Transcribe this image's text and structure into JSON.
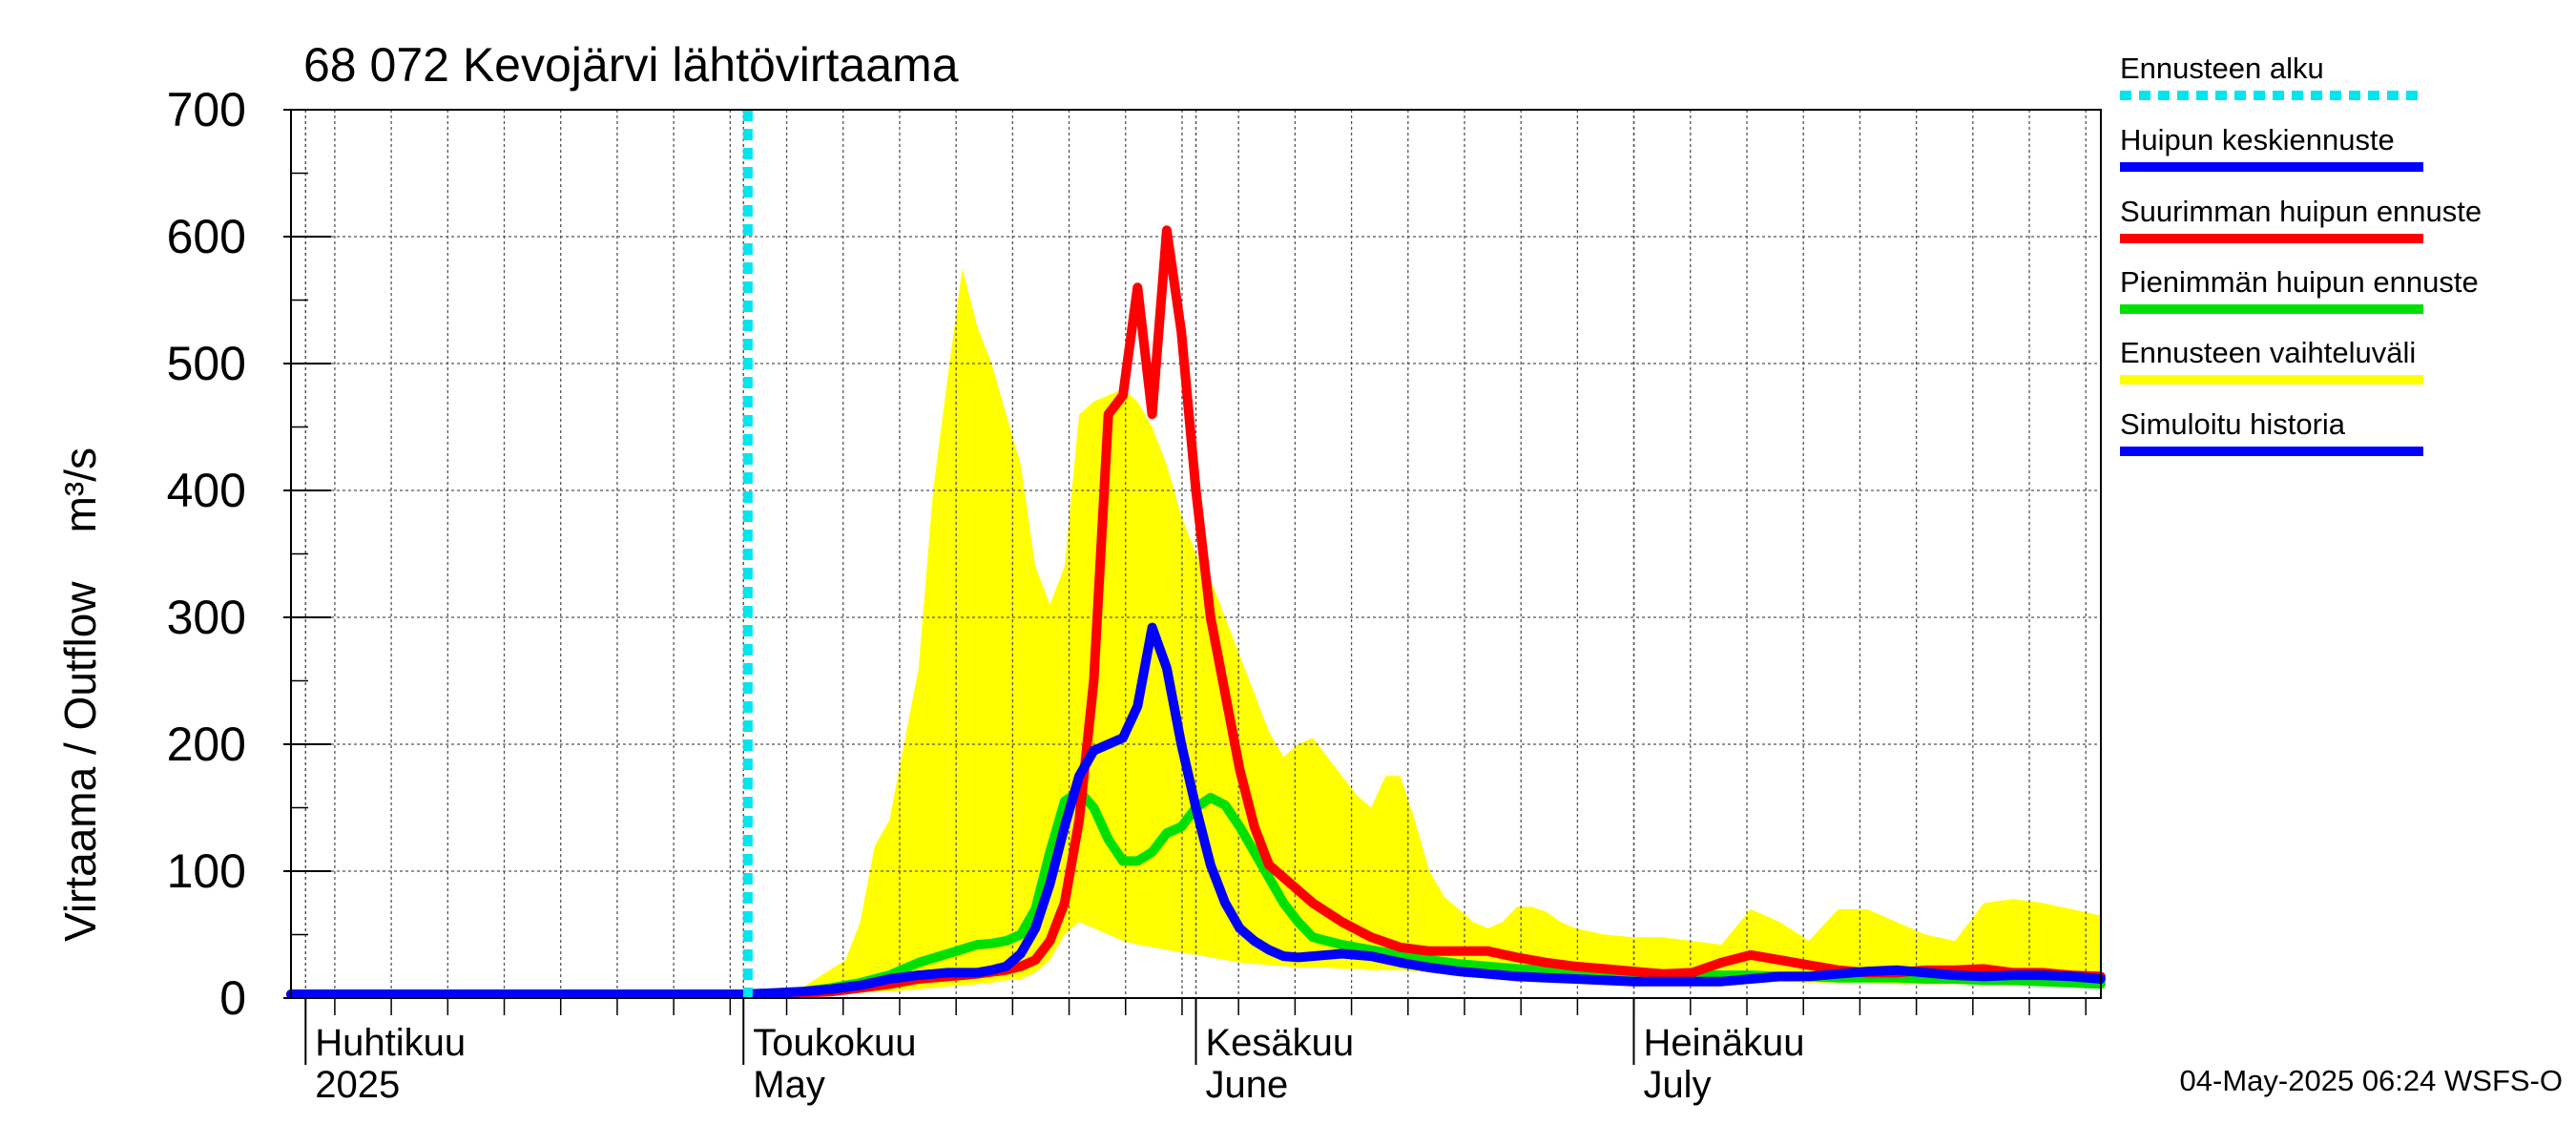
{
  "chart_data": {
    "type": "line",
    "title": "68 072 Kevojärvi lähtövirtaama",
    "ylabel": "Virtaama / Outflow    m³/s",
    "ylim": [
      0,
      700
    ],
    "yticks": [
      0,
      100,
      200,
      300,
      400,
      500,
      600,
      700
    ],
    "ytick_labels": [
      "0",
      "100",
      "200",
      "300",
      "400",
      "500",
      "600",
      "700"
    ],
    "xlim_days": [
      0,
      124
    ],
    "day0": "2025-03-31",
    "month_ticks": [
      {
        "day": 1,
        "fi": "Huhtikuu",
        "en": "2025"
      },
      {
        "day": 31,
        "fi": "Toukokuu",
        "en": "May"
      },
      {
        "day": 62,
        "fi": "Kesäkuu",
        "en": "June"
      },
      {
        "day": 92,
        "fi": "Heinäkuu",
        "en": "July"
      }
    ],
    "forecast_start_day": 31.3,
    "footer": "04-May-2025 06:24 WSFS-O",
    "legend": [
      {
        "key": "start",
        "label": "Ennusteen alku",
        "color": "#00e5ee",
        "style": "dotted"
      },
      {
        "key": "mean",
        "label": "Huipun keskiennuste",
        "color": "#0000ff",
        "style": "solid"
      },
      {
        "key": "max",
        "label": "Suurimman huipun ennuste",
        "color": "#ff0000",
        "style": "solid"
      },
      {
        "key": "min",
        "label": "Pienimmän huipun ennuste",
        "color": "#00e000",
        "style": "solid"
      },
      {
        "key": "band",
        "label": "Ennusteen vaihteluväli",
        "color": "#ffff00",
        "style": "band"
      },
      {
        "key": "hist",
        "label": "Simuloitu historia",
        "color": "#0000ff",
        "style": "solid"
      }
    ],
    "series": [
      {
        "name": "Ennusteen vaihteluväli",
        "color": "#ffff00",
        "x": [
          0,
          31,
          35,
          38,
          39,
          40,
          41,
          42,
          43,
          44,
          45,
          46,
          47,
          48,
          49,
          50,
          51,
          52,
          53,
          54,
          55,
          56,
          57,
          58,
          59,
          60,
          61,
          62,
          63,
          64,
          65,
          66,
          67,
          68,
          69,
          70,
          71,
          72,
          73,
          74,
          75,
          76,
          77,
          78,
          79,
          80,
          81,
          82,
          83,
          84,
          85,
          86,
          87,
          88,
          90,
          92,
          94,
          96,
          98,
          100,
          102,
          104,
          106,
          108,
          110,
          112,
          114,
          116,
          118,
          120,
          122,
          124
        ],
        "upper": [
          3,
          3,
          8,
          30,
          60,
          120,
          140,
          200,
          260,
          400,
          490,
          575,
          530,
          500,
          460,
          420,
          340,
          310,
          340,
          460,
          470,
          475,
          480,
          470,
          450,
          420,
          380,
          350,
          330,
          300,
          270,
          240,
          210,
          190,
          200,
          205,
          190,
          175,
          160,
          150,
          175,
          175,
          140,
          100,
          80,
          70,
          60,
          55,
          60,
          72,
          72,
          68,
          60,
          55,
          50,
          48,
          48,
          45,
          42,
          70,
          60,
          45,
          70,
          70,
          60,
          50,
          45,
          75,
          78,
          75,
          70,
          65
        ],
        "lower": [
          3,
          3,
          3,
          4,
          4,
          5,
          5,
          6,
          7,
          8,
          9,
          10,
          11,
          12,
          14,
          15,
          20,
          30,
          50,
          60,
          55,
          50,
          45,
          42,
          40,
          38,
          36,
          34,
          32,
          30,
          28,
          27,
          26,
          25,
          24,
          24,
          24,
          23,
          23,
          22,
          22,
          22,
          21,
          21,
          20,
          20,
          19,
          19,
          18,
          18,
          17,
          17,
          16,
          16,
          15,
          15,
          14,
          14,
          13,
          13,
          13,
          12,
          12,
          12,
          11,
          11,
          11,
          10,
          10,
          10,
          10,
          10
        ]
      },
      {
        "name": "Pienimmän huipun ennuste",
        "color": "#00e000",
        "x": [
          0,
          31,
          33,
          35,
          37,
          39,
          41,
          43,
          45,
          47,
          48,
          49,
          50,
          51,
          52,
          53,
          54,
          55,
          56,
          57,
          58,
          59,
          60,
          61,
          62,
          63,
          64,
          65,
          66,
          67,
          68,
          69,
          70,
          72,
          74,
          76,
          78,
          80,
          82,
          84,
          86,
          88,
          90,
          92,
          94,
          96,
          98,
          100,
          102,
          104,
          106,
          108,
          110,
          112,
          114,
          116,
          118,
          120,
          122,
          124
        ],
        "y": [
          3,
          3,
          4,
          5,
          8,
          12,
          18,
          28,
          35,
          42,
          43,
          45,
          50,
          70,
          115,
          155,
          163,
          150,
          125,
          108,
          108,
          115,
          130,
          135,
          150,
          158,
          152,
          135,
          115,
          95,
          75,
          60,
          48,
          42,
          38,
          34,
          30,
          27,
          25,
          23,
          22,
          21,
          20,
          20,
          19,
          19,
          18,
          18,
          17,
          17,
          16,
          16,
          16,
          15,
          15,
          14,
          14,
          13,
          12,
          11
        ]
      },
      {
        "name": "Suurimman huipun ennuste",
        "color": "#ff0000",
        "x": [
          0,
          31,
          33,
          35,
          37,
          39,
          41,
          43,
          45,
          47,
          49,
          50,
          51,
          52,
          53,
          54,
          55,
          56,
          57,
          58,
          59,
          60,
          61,
          62,
          63,
          64,
          65,
          66,
          67,
          68,
          69,
          70,
          72,
          74,
          76,
          78,
          80,
          82,
          84,
          86,
          88,
          90,
          92,
          94,
          96,
          98,
          100,
          102,
          104,
          106,
          108,
          110,
          112,
          114,
          116,
          118,
          120,
          122,
          124
        ],
        "y": [
          3,
          3,
          3,
          4,
          5,
          8,
          11,
          15,
          17,
          19,
          22,
          25,
          30,
          45,
          75,
          140,
          250,
          460,
          475,
          560,
          460,
          605,
          525,
          400,
          300,
          240,
          180,
          135,
          105,
          95,
          85,
          75,
          60,
          48,
          40,
          37,
          37,
          37,
          32,
          28,
          25,
          23,
          21,
          19,
          20,
          28,
          34,
          30,
          26,
          22,
          20,
          20,
          22,
          22,
          23,
          20,
          20,
          18,
          17
        ]
      },
      {
        "name": "Huipun keskiennuste",
        "color": "#0000ff",
        "x": [
          0,
          31,
          33,
          35,
          37,
          39,
          41,
          43,
          45,
          46,
          47,
          48,
          49,
          50,
          51,
          52,
          53,
          54,
          55,
          56,
          57,
          58,
          59,
          60,
          61,
          62,
          63,
          64,
          65,
          66,
          67,
          68,
          69,
          70,
          72,
          74,
          76,
          78,
          80,
          82,
          84,
          86,
          88,
          90,
          92,
          94,
          96,
          98,
          100,
          102,
          104,
          106,
          108,
          110,
          112,
          114,
          116,
          118,
          120,
          122,
          124
        ],
        "y": [
          3,
          3,
          4,
          5,
          7,
          10,
          15,
          18,
          20,
          20,
          20,
          22,
          25,
          35,
          55,
          90,
          135,
          175,
          195,
          200,
          205,
          230,
          292,
          260,
          200,
          150,
          105,
          75,
          55,
          45,
          38,
          33,
          32,
          33,
          35,
          33,
          28,
          24,
          21,
          19,
          17,
          16,
          15,
          14,
          13,
          13,
          13,
          13,
          15,
          17,
          17,
          19,
          21,
          22,
          20,
          18,
          17,
          18,
          18,
          17,
          15
        ]
      },
      {
        "name": "Simuloitu historia",
        "color": "#0000ff",
        "x": [
          0,
          5,
          10,
          15,
          20,
          25,
          28,
          30,
          31
        ],
        "y": [
          3,
          3,
          3,
          3,
          3,
          3,
          3,
          3,
          3
        ]
      }
    ]
  }
}
